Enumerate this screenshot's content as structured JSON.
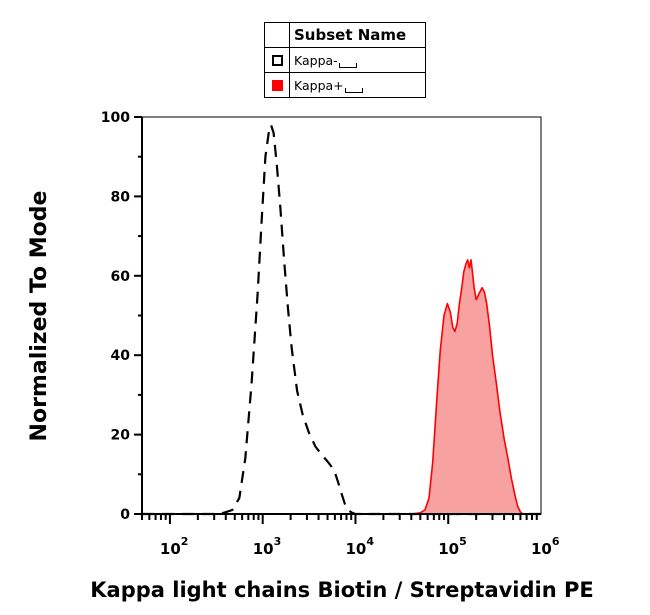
{
  "legend": {
    "header": "Subset Name",
    "entries": [
      {
        "label": "Kappa-",
        "style": "hollow",
        "line": "dashed",
        "color": "#000000"
      },
      {
        "label": "Kappa+",
        "style": "filled",
        "line": "solid",
        "color": "#ff0000"
      }
    ]
  },
  "chart_data": {
    "type": "area",
    "xlabel": "Kappa light chains Biotin / Streptavidin PE",
    "ylabel": "Normalized To Mode",
    "x_scale": "log",
    "xlim": [
      50,
      1000000
    ],
    "ylim": [
      0,
      100
    ],
    "yticks": [
      0,
      20,
      40,
      60,
      80,
      100
    ],
    "xticks": [
      {
        "base": "10",
        "exp": "2",
        "value": 100
      },
      {
        "base": "10",
        "exp": "3",
        "value": 1000
      },
      {
        "base": "10",
        "exp": "4",
        "value": 10000
      },
      {
        "base": "10",
        "exp": "5",
        "value": 100000
      },
      {
        "base": "10",
        "exp": "6",
        "value": 1000000
      }
    ],
    "series": [
      {
        "name": "Kappa-",
        "color": "#000000",
        "fill": "none",
        "dash": true,
        "points": [
          [
            50,
            0
          ],
          [
            300,
            0
          ],
          [
            380,
            0.3
          ],
          [
            470,
            1
          ],
          [
            560,
            4
          ],
          [
            650,
            14
          ],
          [
            760,
            33
          ],
          [
            880,
            55
          ],
          [
            980,
            75
          ],
          [
            1070,
            90
          ],
          [
            1160,
            96
          ],
          [
            1230,
            98
          ],
          [
            1310,
            96
          ],
          [
            1420,
            88
          ],
          [
            1550,
            77
          ],
          [
            1700,
            64
          ],
          [
            1870,
            52
          ],
          [
            2050,
            42
          ],
          [
            2350,
            31
          ],
          [
            2700,
            25
          ],
          [
            3150,
            20.5
          ],
          [
            3700,
            17
          ],
          [
            4300,
            15
          ],
          [
            5100,
            13
          ],
          [
            5900,
            11
          ],
          [
            6500,
            8
          ],
          [
            7100,
            5
          ],
          [
            7700,
            2.5
          ],
          [
            8300,
            1
          ],
          [
            9200,
            0.3
          ],
          [
            10000,
            0
          ],
          [
            1000000,
            0
          ]
        ]
      },
      {
        "name": "Kappa+",
        "color": "#ff0000",
        "fill": "#f7a1a1",
        "dash": false,
        "points": [
          [
            50,
            0
          ],
          [
            40000,
            0
          ],
          [
            50000,
            0.3
          ],
          [
            56000,
            1
          ],
          [
            62000,
            4
          ],
          [
            68000,
            13
          ],
          [
            75000,
            28
          ],
          [
            82000,
            41
          ],
          [
            90000,
            50
          ],
          [
            98000,
            53
          ],
          [
            105000,
            51
          ],
          [
            112000,
            47
          ],
          [
            118000,
            46
          ],
          [
            125000,
            48
          ],
          [
            132000,
            53
          ],
          [
            140000,
            57
          ],
          [
            147000,
            61
          ],
          [
            155000,
            63
          ],
          [
            162000,
            64
          ],
          [
            169000,
            62
          ],
          [
            176000,
            64
          ],
          [
            182000,
            61
          ],
          [
            190000,
            57
          ],
          [
            200000,
            54
          ],
          [
            210000,
            55
          ],
          [
            220000,
            56
          ],
          [
            232000,
            57
          ],
          [
            245000,
            56
          ],
          [
            260000,
            53
          ],
          [
            280000,
            47
          ],
          [
            300000,
            40
          ],
          [
            330000,
            33
          ],
          [
            360000,
            26
          ],
          [
            400000,
            19
          ],
          [
            440000,
            14
          ],
          [
            480000,
            9
          ],
          [
            520000,
            5
          ],
          [
            560000,
            2
          ],
          [
            600000,
            0.5
          ],
          [
            640000,
            0
          ],
          [
            1000000,
            0
          ]
        ]
      }
    ]
  }
}
